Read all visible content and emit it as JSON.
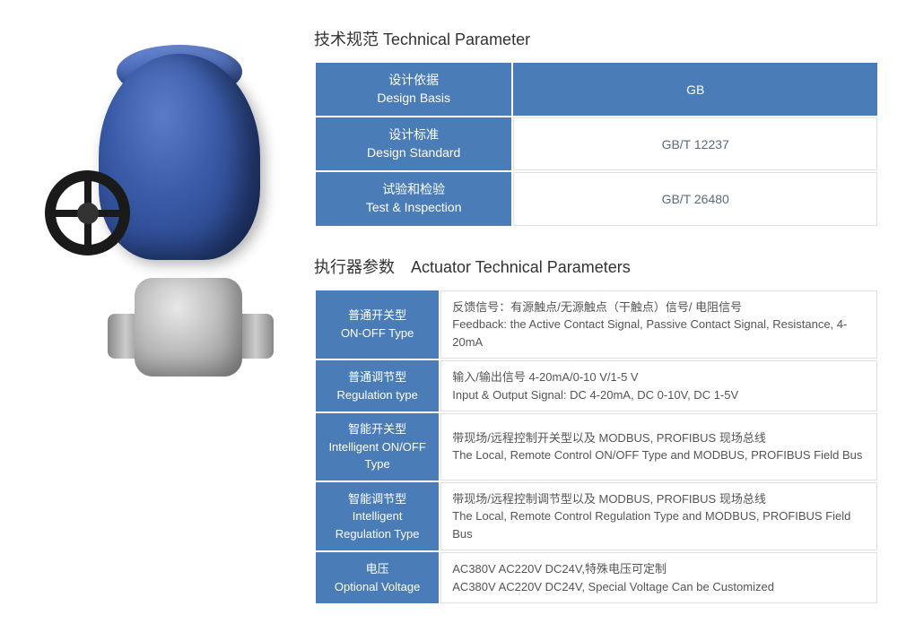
{
  "section1": {
    "title": "技术规范 Technical Parameter",
    "rows": [
      {
        "label_cn": "设计依据",
        "label_en": "Design Basis",
        "value": "GB",
        "value_is_header": true
      },
      {
        "label_cn": "设计标准",
        "label_en": "Design Standard",
        "value": "GB/T 12237",
        "value_is_header": false
      },
      {
        "label_cn": "试验和检验",
        "label_en": "Test & Inspection",
        "value": "GB/T 26480",
        "value_is_header": false
      }
    ]
  },
  "section2": {
    "title": "执行器参数　Actuator Technical Parameters",
    "rows": [
      {
        "label_cn": "普通开关型",
        "label_en": "ON-OFF Type",
        "value_cn": "反馈信号：有源触点/无源触点（干触点）信号/ 电阻信号",
        "value_en": "Feedback: the Active Contact Signal, Passive Contact Signal, Resistance, 4-20mA"
      },
      {
        "label_cn": "普通调节型",
        "label_en": "Regulation type",
        "value_cn": "输入/输出信号 4-20mA/0-10 V/1-5 V",
        "value_en": "Input & Output Signal: DC 4-20mA, DC 0-10V, DC 1-5V"
      },
      {
        "label_cn": "智能开关型",
        "label_en": "Intelligent ON/OFF Type",
        "value_cn": "带现场/远程控制开关型以及 MODBUS, PROFIBUS 现场总线",
        "value_en": "The Local, Remote Control ON/OFF Type and MODBUS, PROFIBUS Field Bus"
      },
      {
        "label_cn": "智能调节型",
        "label_en": "Intelligent Regulation Type",
        "value_cn": "带现场/远程控制调节型以及 MODBUS, PROFIBUS 现场总线",
        "value_en": "The Local, Remote Control Regulation Type and MODBUS, PROFIBUS Field Bus"
      },
      {
        "label_cn": "电压",
        "label_en": "Optional Voltage",
        "value_cn": "AC380V AC220V DC24V,特殊电压可定制",
        "value_en": "AC380V AC220V DC24V, Special Voltage Can be Customized"
      }
    ]
  },
  "colors": {
    "header_bg": "#4a7cb8",
    "header_text": "#ffffff",
    "cell_border": "#e0e0e0",
    "text_gray": "#5a6a7a"
  }
}
